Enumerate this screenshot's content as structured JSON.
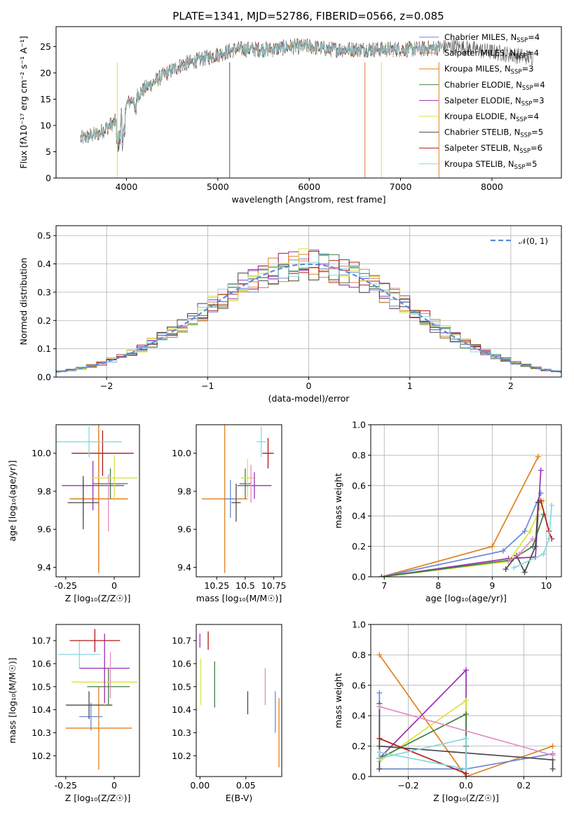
{
  "figure": {
    "title": "PLATE=1341, MJD=52786, FIBERID=0566, z=0.085"
  },
  "colors": {
    "Chabrier MILES": "#6a87d4",
    "Salpeter MILES": "#e07a52",
    "Kroupa MILES": "#e0801f",
    "Chabrier ELODIE": "#3f7f3f",
    "Salpeter ELODIE": "#9a2fb4",
    "Kroupa ELODIE": "#d6e63a",
    "Chabrier STELIB": "#4a4a4a",
    "Salpeter STELIB": "#b01818",
    "Kroupa STELIB": "#86d8e0"
  },
  "legend_labels": [
    {
      "model": "Chabrier MILES",
      "pre": "Chabrier MILES, N",
      "n": "=4"
    },
    {
      "model": "Salpeter MILES",
      "pre": "Salpeter MILES, N",
      "n": "=4"
    },
    {
      "model": "Kroupa MILES",
      "pre": "Kroupa MILES, N",
      "n": "=3"
    },
    {
      "model": "Chabrier ELODIE",
      "pre": "Chabrier ELODIE, N",
      "n": "=4"
    },
    {
      "model": "Salpeter ELODIE",
      "pre": "Salpeter ELODIE, N",
      "n": "=3"
    },
    {
      "model": "Kroupa ELODIE",
      "pre": "Kroupa ELODIE, N",
      "n": "=4"
    },
    {
      "model": "Chabrier STELIB",
      "pre": "Chabrier STELIB, N",
      "n": "=5"
    },
    {
      "model": "Salpeter STELIB",
      "pre": "Salpeter STELIB, N",
      "n": "=6"
    },
    {
      "model": "Kroupa STELIB",
      "pre": "Kroupa STELIB, N",
      "n": "=5"
    }
  ],
  "chart_data": [
    {
      "id": "spectrum",
      "type": "line",
      "xlabel": "wavelength [Angstrom, rest frame]",
      "ylabel": "Flux [fλ10⁻¹⁷ erg cm⁻² s⁻¹ A⁻¹]",
      "xlim": [
        3230,
        8760
      ],
      "ylim": [
        0,
        28.8
      ],
      "xticks": [
        4000,
        5000,
        6000,
        7000,
        8000
      ],
      "yticks": [
        0,
        5,
        10,
        15,
        20,
        25
      ],
      "continuum": [
        [
          3500,
          7.5
        ],
        [
          3700,
          8.5
        ],
        [
          3900,
          11
        ],
        [
          4000,
          14
        ],
        [
          4200,
          17
        ],
        [
          4400,
          19.5
        ],
        [
          4600,
          21.5
        ],
        [
          4800,
          22.5
        ],
        [
          5000,
          23.5
        ],
        [
          5200,
          24.5
        ],
        [
          5400,
          24.5
        ],
        [
          5600,
          24.5
        ],
        [
          5800,
          25
        ],
        [
          6000,
          25
        ],
        [
          6200,
          24.5
        ],
        [
          6400,
          24.5
        ],
        [
          6600,
          24.5
        ],
        [
          6800,
          24.5
        ],
        [
          7000,
          24.5
        ],
        [
          7200,
          24.5
        ],
        [
          7400,
          24.8
        ],
        [
          7600,
          25
        ],
        [
          7800,
          24.5
        ],
        [
          8000,
          24
        ],
        [
          8200,
          23.5
        ],
        [
          8400,
          23
        ]
      ],
      "data_range": [
        3500,
        8450
      ],
      "model_range": [
        3500,
        7420
      ]
    },
    {
      "id": "residuals",
      "type": "histogram",
      "xlabel": "(data-model)/error",
      "ylabel": "Normed distribution",
      "xlim": [
        -2.5,
        2.5
      ],
      "ylim": [
        0,
        0.535
      ],
      "xticks": [
        -2,
        -1,
        0,
        1,
        2
      ],
      "xtick_labels": [
        "−2",
        "−1",
        "0",
        "1",
        "2"
      ],
      "yticks": [
        0.0,
        0.1,
        0.2,
        0.3,
        0.4,
        0.5
      ],
      "bin_width": 0.1,
      "reference_curve": "𝒩(0, 1)"
    },
    {
      "id": "age_vs_z",
      "type": "errorbar",
      "xlabel": "Z [log₁₀(Z/Z☉)]",
      "ylabel": "age  [log₁₀(age/yr)]",
      "xlim": [
        -0.3,
        0.13
      ],
      "ylim": [
        9.35,
        10.15
      ],
      "xticks": [
        -0.25,
        0.0
      ],
      "yticks": [
        9.4,
        9.6,
        9.8,
        10.0
      ],
      "points": [
        {
          "model": "Chabrier MILES",
          "x": -0.16,
          "xerr": 0.07,
          "y": 9.76,
          "yerr": 0.1
        },
        {
          "model": "Salpeter MILES",
          "x": -0.08,
          "xerr": 0.15,
          "y": 9.76,
          "yerr": 0.39
        },
        {
          "model": "Kroupa MILES",
          "x": -0.08,
          "xerr": 0.15,
          "y": 9.76,
          "yerr": 0.39
        },
        {
          "model": "Chabrier ELODIE",
          "x": -0.02,
          "xerr": 0.09,
          "y": 9.84,
          "yerr": 0.08
        },
        {
          "model": "Salpeter ELODIE",
          "x": -0.11,
          "xerr": 0.16,
          "y": 9.83,
          "yerr": 0.13
        },
        {
          "model": "Kroupa ELODIE",
          "x": 0.0,
          "xerr": 0.12,
          "y": 9.87,
          "yerr": 0.12
        },
        {
          "model": "Chabrier STELIB",
          "x": -0.16,
          "xerr": 0.08,
          "y": 9.74,
          "yerr": 0.14
        },
        {
          "model": "Salpeter STELIB",
          "x": -0.06,
          "xerr": 0.16,
          "y": 10.0,
          "yerr": 0.12
        },
        {
          "model": "Kroupa STELIB",
          "x": -0.13,
          "xerr": 0.17,
          "y": 10.06,
          "yerr": 0.08
        },
        {
          "model": "pink",
          "x": -0.03,
          "xerr": 0.0,
          "y": 9.74,
          "yerr": 0.15
        }
      ]
    },
    {
      "id": "age_vs_mass",
      "type": "errorbar",
      "xlabel": "mass [log₁₀(M/M☉)]",
      "ylabel": "",
      "xlim": [
        10.07,
        10.82
      ],
      "ylim": [
        9.35,
        10.15
      ],
      "xticks": [
        10.25,
        10.5,
        10.75
      ],
      "yticks": [
        9.4,
        9.6,
        9.8,
        10.0
      ],
      "points": [
        {
          "model": "Kroupa MILES",
          "x": 10.32,
          "xerr": 0.2,
          "y": 9.76,
          "yerr": 0.39
        },
        {
          "model": "Chabrier MILES",
          "x": 10.37,
          "xerr": 0.05,
          "y": 9.76,
          "yerr": 0.1
        },
        {
          "model": "Chabrier STELIB",
          "x": 10.42,
          "xerr": 0.04,
          "y": 9.74,
          "yerr": 0.1
        },
        {
          "model": "Chabrier ELODIE",
          "x": 10.5,
          "xerr": 0.05,
          "y": 9.84,
          "yerr": 0.08
        },
        {
          "model": "Kroupa ELODIE",
          "x": 10.52,
          "xerr": 0.06,
          "y": 9.87,
          "yerr": 0.1
        },
        {
          "model": "Salpeter ELODIE",
          "x": 10.58,
          "xerr": 0.15,
          "y": 9.83,
          "yerr": 0.07
        },
        {
          "model": "Kroupa STELIB",
          "x": 10.64,
          "xerr": 0.04,
          "y": 10.06,
          "yerr": 0.08
        },
        {
          "model": "Salpeter STELIB",
          "x": 10.7,
          "xerr": 0.05,
          "y": 10.0,
          "yerr": 0.08
        },
        {
          "model": "pink",
          "x": 10.55,
          "xerr": 0.0,
          "y": 9.84,
          "yerr": 0.1
        }
      ]
    },
    {
      "id": "weight_vs_age",
      "type": "line",
      "xlabel": "age  [log₁₀(age/yr)]",
      "ylabel": "mass weight",
      "xlim": [
        6.75,
        10.28
      ],
      "ylim": [
        0,
        1
      ],
      "xticks": [
        7,
        8,
        9,
        10
      ],
      "yticks": [
        0.0,
        0.2,
        0.4,
        0.6,
        0.8,
        1.0
      ],
      "series": [
        {
          "model": "Kroupa MILES",
          "points": [
            [
              6.95,
              0.0
            ],
            [
              9.0,
              0.2
            ],
            [
              9.85,
              0.79
            ]
          ]
        },
        {
          "model": "Chabrier MILES",
          "points": [
            [
              6.95,
              0.0
            ],
            [
              9.2,
              0.17
            ],
            [
              9.6,
              0.3
            ],
            [
              9.9,
              0.55
            ]
          ]
        },
        {
          "model": "Salpeter ELODIE",
          "points": [
            [
              6.95,
              0.0
            ],
            [
              9.3,
              0.12
            ],
            [
              9.8,
              0.13
            ],
            [
              9.9,
              0.7
            ]
          ]
        },
        {
          "model": "Kroupa ELODIE",
          "points": [
            [
              6.95,
              0.0
            ],
            [
              9.3,
              0.1
            ],
            [
              9.7,
              0.3
            ],
            [
              9.95,
              0.5
            ]
          ]
        },
        {
          "model": "Chabrier ELODIE",
          "points": [
            [
              6.95,
              0.0
            ],
            [
              9.35,
              0.11
            ],
            [
              9.75,
              0.2
            ],
            [
              9.95,
              0.41
            ]
          ]
        },
        {
          "model": "Chabrier STELIB",
          "points": [
            [
              9.25,
              0.05
            ],
            [
              9.45,
              0.14
            ],
            [
              9.6,
              0.03
            ],
            [
              9.8,
              0.2
            ],
            [
              9.85,
              0.49
            ]
          ]
        },
        {
          "model": "Salpeter STELIB",
          "points": [
            [
              9.9,
              0.5
            ],
            [
              10.05,
              0.3
            ],
            [
              10.1,
              0.25
            ]
          ]
        },
        {
          "model": "Kroupa STELIB",
          "points": [
            [
              9.4,
              0.06
            ],
            [
              9.95,
              0.15
            ],
            [
              10.05,
              0.25
            ],
            [
              10.1,
              0.47
            ]
          ]
        },
        {
          "model": "pink",
          "points": [
            [
              9.3,
              0.1
            ],
            [
              9.5,
              0.15
            ],
            [
              9.75,
              0.25
            ]
          ]
        }
      ]
    },
    {
      "id": "mass_vs_z",
      "type": "errorbar",
      "xlabel": "Z [log₁₀(Z/Z☉)]",
      "ylabel": "mass [log₁₀(M/M☉)]",
      "xlim": [
        -0.3,
        0.13
      ],
      "ylim": [
        10.11,
        10.77
      ],
      "xticks": [
        -0.25,
        0.0
      ],
      "yticks": [
        10.2,
        10.3,
        10.4,
        10.5,
        10.6,
        10.7
      ],
      "points": [
        {
          "model": "Kroupa MILES",
          "x": -0.08,
          "xerr": 0.17,
          "y": 10.32,
          "yerr": 0.18
        },
        {
          "model": "Chabrier MILES",
          "x": -0.12,
          "xerr": 0.06,
          "y": 10.37,
          "yerr": 0.06
        },
        {
          "model": "Chabrier STELIB",
          "x": -0.13,
          "xerr": 0.12,
          "y": 10.42,
          "yerr": 0.06
        },
        {
          "model": "Chabrier ELODIE",
          "x": -0.03,
          "xerr": 0.11,
          "y": 10.5,
          "yerr": 0.08
        },
        {
          "model": "Kroupa ELODIE",
          "x": -0.05,
          "xerr": 0.17,
          "y": 10.52,
          "yerr": 0.1
        },
        {
          "model": "Salpeter ELODIE",
          "x": -0.05,
          "xerr": 0.13,
          "y": 10.58,
          "yerr": 0.15
        },
        {
          "model": "Kroupa STELIB",
          "x": -0.18,
          "xerr": 0.11,
          "y": 10.64,
          "yerr": 0.06
        },
        {
          "model": "Salpeter STELIB",
          "x": -0.1,
          "xerr": 0.13,
          "y": 10.7,
          "yerr": 0.05
        },
        {
          "model": "pink",
          "x": -0.02,
          "xerr": 0.0,
          "y": 10.55,
          "yerr": 0.1
        }
      ]
    },
    {
      "id": "mass_vs_ebv",
      "type": "errorbar",
      "xlabel": "E(B-V)",
      "ylabel": "",
      "xlim": [
        -0.004,
        0.089
      ],
      "ylim": [
        10.11,
        10.77
      ],
      "xticks": [
        0.0,
        0.05
      ],
      "xtick_labels": [
        "0.00",
        "0.05"
      ],
      "yticks": [
        10.2,
        10.3,
        10.4,
        10.5,
        10.6,
        10.7
      ],
      "points": [
        {
          "model": "Kroupa MILES",
          "x": 0.086,
          "xerr": 0,
          "y": 10.3,
          "yerr": 0.15
        },
        {
          "model": "Chabrier MILES",
          "x": 0.082,
          "xerr": 0,
          "y": 10.39,
          "yerr": 0.09
        },
        {
          "model": "Chabrier STELIB",
          "x": 0.052,
          "xerr": 0,
          "y": 10.43,
          "yerr": 0.05
        },
        {
          "model": "Chabrier ELODIE",
          "x": 0.016,
          "xerr": 0,
          "y": 10.51,
          "yerr": 0.1
        },
        {
          "model": "Kroupa ELODIE",
          "x": 0.001,
          "xerr": 0,
          "y": 10.52,
          "yerr": 0.1
        },
        {
          "model": "Salpeter ELODIE",
          "x": 0.0,
          "xerr": 0,
          "y": 10.7,
          "yerr": 0.03
        },
        {
          "model": "Salpeter STELIB",
          "x": 0.009,
          "xerr": 0,
          "y": 10.7,
          "yerr": 0.04
        },
        {
          "model": "pink",
          "x": 0.071,
          "xerr": 0,
          "y": 10.5,
          "yerr": 0.08
        }
      ]
    },
    {
      "id": "weight_vs_z",
      "type": "line",
      "xlabel": "Z [log₁₀(Z/Z☉)]",
      "ylabel": "mass weight",
      "xlim": [
        -0.33,
        0.33
      ],
      "ylim": [
        0,
        1
      ],
      "xticks": [
        -0.2,
        0.0,
        0.2
      ],
      "xtick_labels": [
        "−0.2",
        "0.0",
        "0.2"
      ],
      "yticks": [
        0.0,
        0.2,
        0.4,
        0.6,
        0.8,
        1.0
      ],
      "series": [
        {
          "model": "Kroupa MILES",
          "points": [
            [
              -0.3,
              0.8
            ],
            [
              0.0,
              0.0
            ],
            [
              0.3,
              0.2
            ]
          ]
        },
        {
          "model": "Chabrier MILES",
          "points": [
            [
              -0.3,
              0.55
            ],
            [
              -0.3,
              0.05
            ],
            [
              0.0,
              0.05
            ],
            [
              0.3,
              0.15
            ]
          ]
        },
        {
          "model": "Salpeter ELODIE",
          "points": [
            [
              -0.3,
              0.12
            ],
            [
              0.0,
              0.7
            ],
            [
              0.0,
              0.0
            ]
          ]
        },
        {
          "model": "Kroupa ELODIE",
          "points": [
            [
              -0.3,
              0.1
            ],
            [
              0.0,
              0.5
            ],
            [
              0.0,
              0.4
            ]
          ]
        },
        {
          "model": "Chabrier ELODIE",
          "points": [
            [
              -0.3,
              0.12
            ],
            [
              0.0,
              0.41
            ],
            [
              0.0,
              0.2
            ]
          ]
        },
        {
          "model": "Chabrier STELIB",
          "points": [
            [
              -0.3,
              0.48
            ],
            [
              -0.3,
              0.05
            ],
            [
              -0.3,
              0.2
            ],
            [
              0.3,
              0.11
            ],
            [
              0.3,
              0.05
            ]
          ]
        },
        {
          "model": "Salpeter STELIB",
          "points": [
            [
              -0.3,
              0.25
            ],
            [
              0.0,
              0.02
            ]
          ]
        },
        {
          "model": "Kroupa STELIB",
          "points": [
            [
              -0.3,
              0.16
            ],
            [
              0.0,
              0.05
            ],
            [
              0.0,
              0.25
            ],
            [
              -0.3,
              0.12
            ]
          ]
        },
        {
          "model": "pink",
          "points": [
            [
              -0.3,
              0.46
            ],
            [
              0.3,
              0.14
            ]
          ]
        }
      ]
    }
  ]
}
